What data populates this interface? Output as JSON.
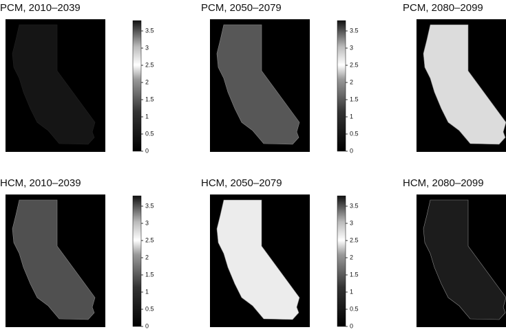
{
  "panels": [
    {
      "title": "PCM, 2010–2039",
      "colorbar": {
        "limits": [
          0,
          3.8
        ],
        "ticks": [
          0,
          0.5,
          1,
          1.5,
          2,
          2.5,
          3,
          3.5
        ]
      }
    },
    {
      "title": "PCM, 2050–2079",
      "colorbar": {
        "limits": [
          0,
          3.8
        ],
        "ticks": [
          0,
          0.5,
          1,
          1.5,
          2,
          2.5,
          3,
          3.5
        ]
      }
    },
    {
      "title": "PCM, 2080–2099"
    },
    {
      "title": "HCM, 2010–2039",
      "colorbar": {
        "limits": [
          0,
          3.8
        ],
        "ticks": [
          0,
          0.5,
          1,
          1.5,
          2,
          2.5,
          3,
          3.5
        ]
      }
    },
    {
      "title": "HCM, 2050–2079",
      "colorbar": {
        "limits": [
          0,
          3.8
        ],
        "ticks": [
          0,
          0.5,
          1,
          1.5,
          2,
          2.5,
          3,
          3.5
        ]
      }
    },
    {
      "title": "HCM, 2080–2099"
    }
  ]
}
